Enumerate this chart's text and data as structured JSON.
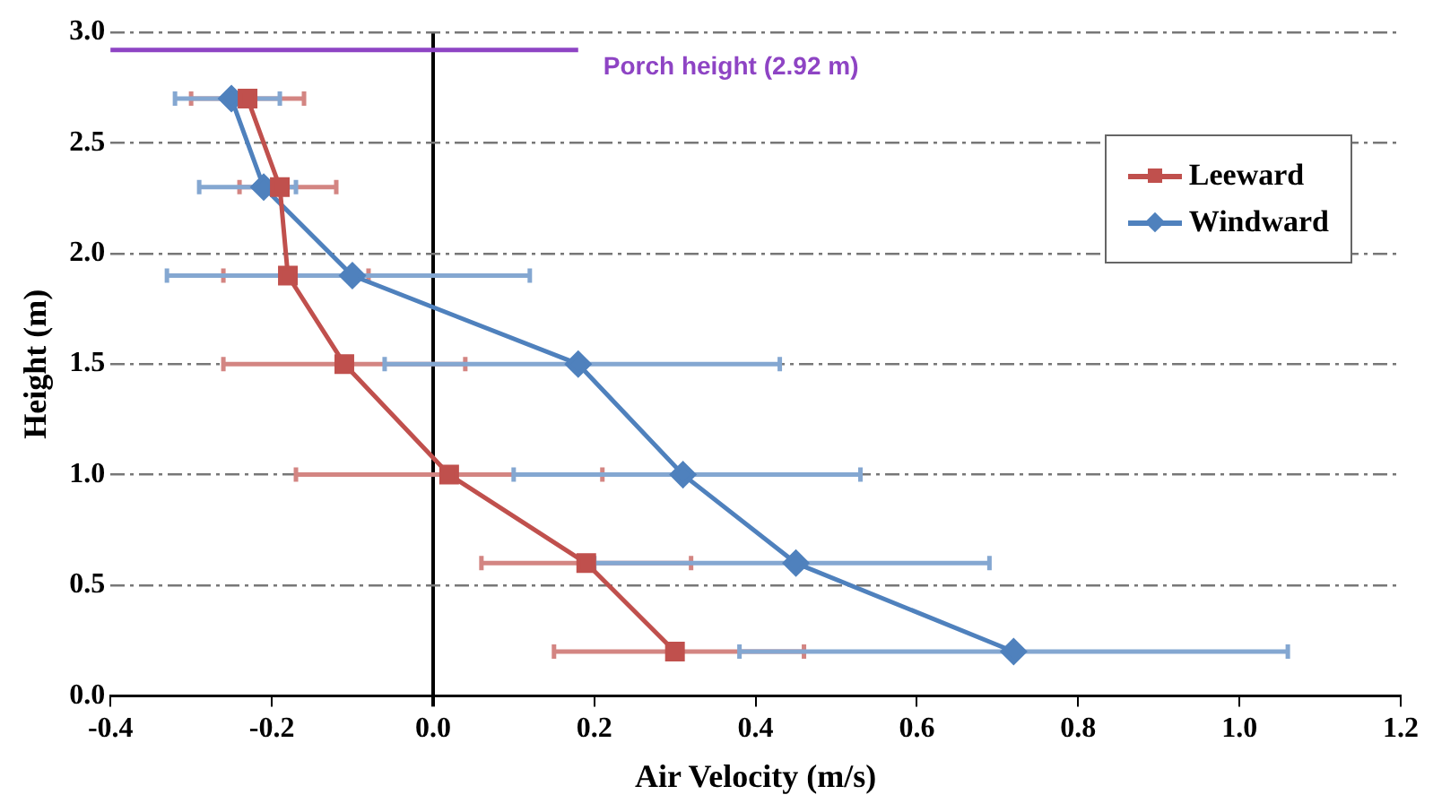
{
  "chart_data": {
    "type": "line",
    "xlabel": "Air Velocity (m/s)",
    "ylabel": "Height (m)",
    "xlim": [
      -0.4,
      1.2
    ],
    "xticks": [
      {
        "value": -0.4,
        "label": "-0.4"
      },
      {
        "value": -0.2,
        "label": "-0.2"
      },
      {
        "value": 0,
        "label": "0.0"
      },
      {
        "value": 0.2,
        "label": "0.2"
      },
      {
        "value": 0.4,
        "label": "0.4"
      },
      {
        "value": 0.6,
        "label": "0.6"
      },
      {
        "value": 0.8,
        "label": "0.8"
      },
      {
        "value": 1,
        "label": "1.0"
      },
      {
        "value": 1.2,
        "label": "1.2"
      }
    ],
    "ylim": [
      0,
      3
    ],
    "yticks": [
      {
        "value": 0,
        "label": "0.0"
      },
      {
        "value": 0.5,
        "label": "0.5"
      },
      {
        "value": 1,
        "label": "1.0"
      },
      {
        "value": 1.5,
        "label": "1.5"
      },
      {
        "value": 2,
        "label": "2.0"
      },
      {
        "value": 2.5,
        "label": "2.5"
      },
      {
        "value": 3,
        "label": "3.0"
      }
    ],
    "grid": "y",
    "legend": "top right",
    "ref_lines": [
      {
        "axis": "y",
        "value": 2.92,
        "label": "Porch height (2.92 m)",
        "color": "#8e44c4"
      }
    ],
    "series": [
      {
        "name": "Leeward",
        "color": "#c0504d",
        "marker": "square",
        "x": [
          -0.23,
          -0.19,
          -0.18,
          -0.11,
          0.02,
          0.19,
          0.3
        ],
        "values": [
          2.7,
          2.3,
          1.9,
          1.5,
          1.0,
          0.6,
          0.2
        ],
        "xerrors": [
          [
            -0.3,
            -0.16
          ],
          [
            -0.24,
            -0.12
          ],
          [
            -0.26,
            -0.08
          ],
          [
            -0.26,
            0.04
          ],
          [
            -0.17,
            0.21
          ],
          [
            0.06,
            0.32
          ],
          [
            0.15,
            0.46
          ]
        ]
      },
      {
        "name": "Windward",
        "color": "#4f81bd",
        "marker": "diamond",
        "x": [
          -0.25,
          -0.21,
          -0.1,
          0.18,
          0.31,
          0.45,
          0.72
        ],
        "values": [
          2.7,
          2.3,
          1.9,
          1.5,
          1.0,
          0.6,
          0.2
        ],
        "xerrors": [
          [
            -0.32,
            -0.19
          ],
          [
            -0.29,
            -0.17
          ],
          [
            -0.33,
            0.12
          ],
          [
            -0.06,
            0.43
          ],
          [
            0.1,
            0.53
          ],
          [
            0.2,
            0.69
          ],
          [
            0.38,
            1.06
          ]
        ]
      }
    ]
  }
}
